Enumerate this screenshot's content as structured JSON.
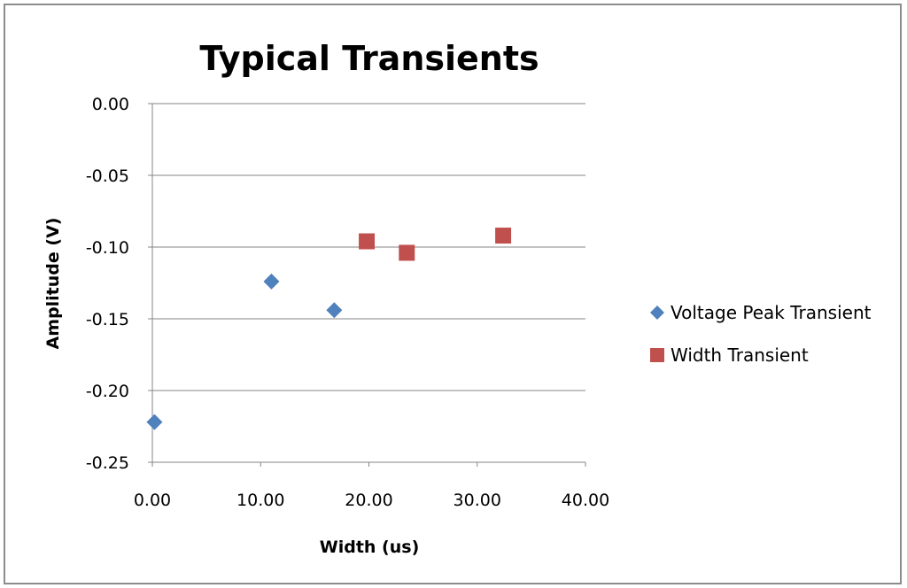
{
  "chart_data": {
    "type": "scatter",
    "title": "Typical Transients",
    "xlabel": "Width (us)",
    "ylabel": "Amplitude (V)",
    "xlim": [
      0,
      40
    ],
    "ylim": [
      -0.25,
      0
    ],
    "x_ticks": [
      "0.00",
      "10.00",
      "20.00",
      "30.00",
      "40.00"
    ],
    "y_ticks": [
      "0.00",
      "-0.05",
      "-0.10",
      "-0.15",
      "-0.20",
      "-0.25"
    ],
    "grid": "horizontal major gridlines",
    "legend_position": "right",
    "series": [
      {
        "name": "Voltage Peak Transient",
        "marker": "diamond",
        "color": "#4f81bd",
        "x": [
          0.2,
          11.0,
          16.8
        ],
        "y": [
          -0.222,
          -0.124,
          -0.144
        ]
      },
      {
        "name": "Width Transient",
        "marker": "square",
        "color": "#c0504d",
        "x": [
          19.8,
          23.5,
          32.4
        ],
        "y": [
          -0.096,
          -0.104,
          -0.092
        ]
      }
    ]
  }
}
